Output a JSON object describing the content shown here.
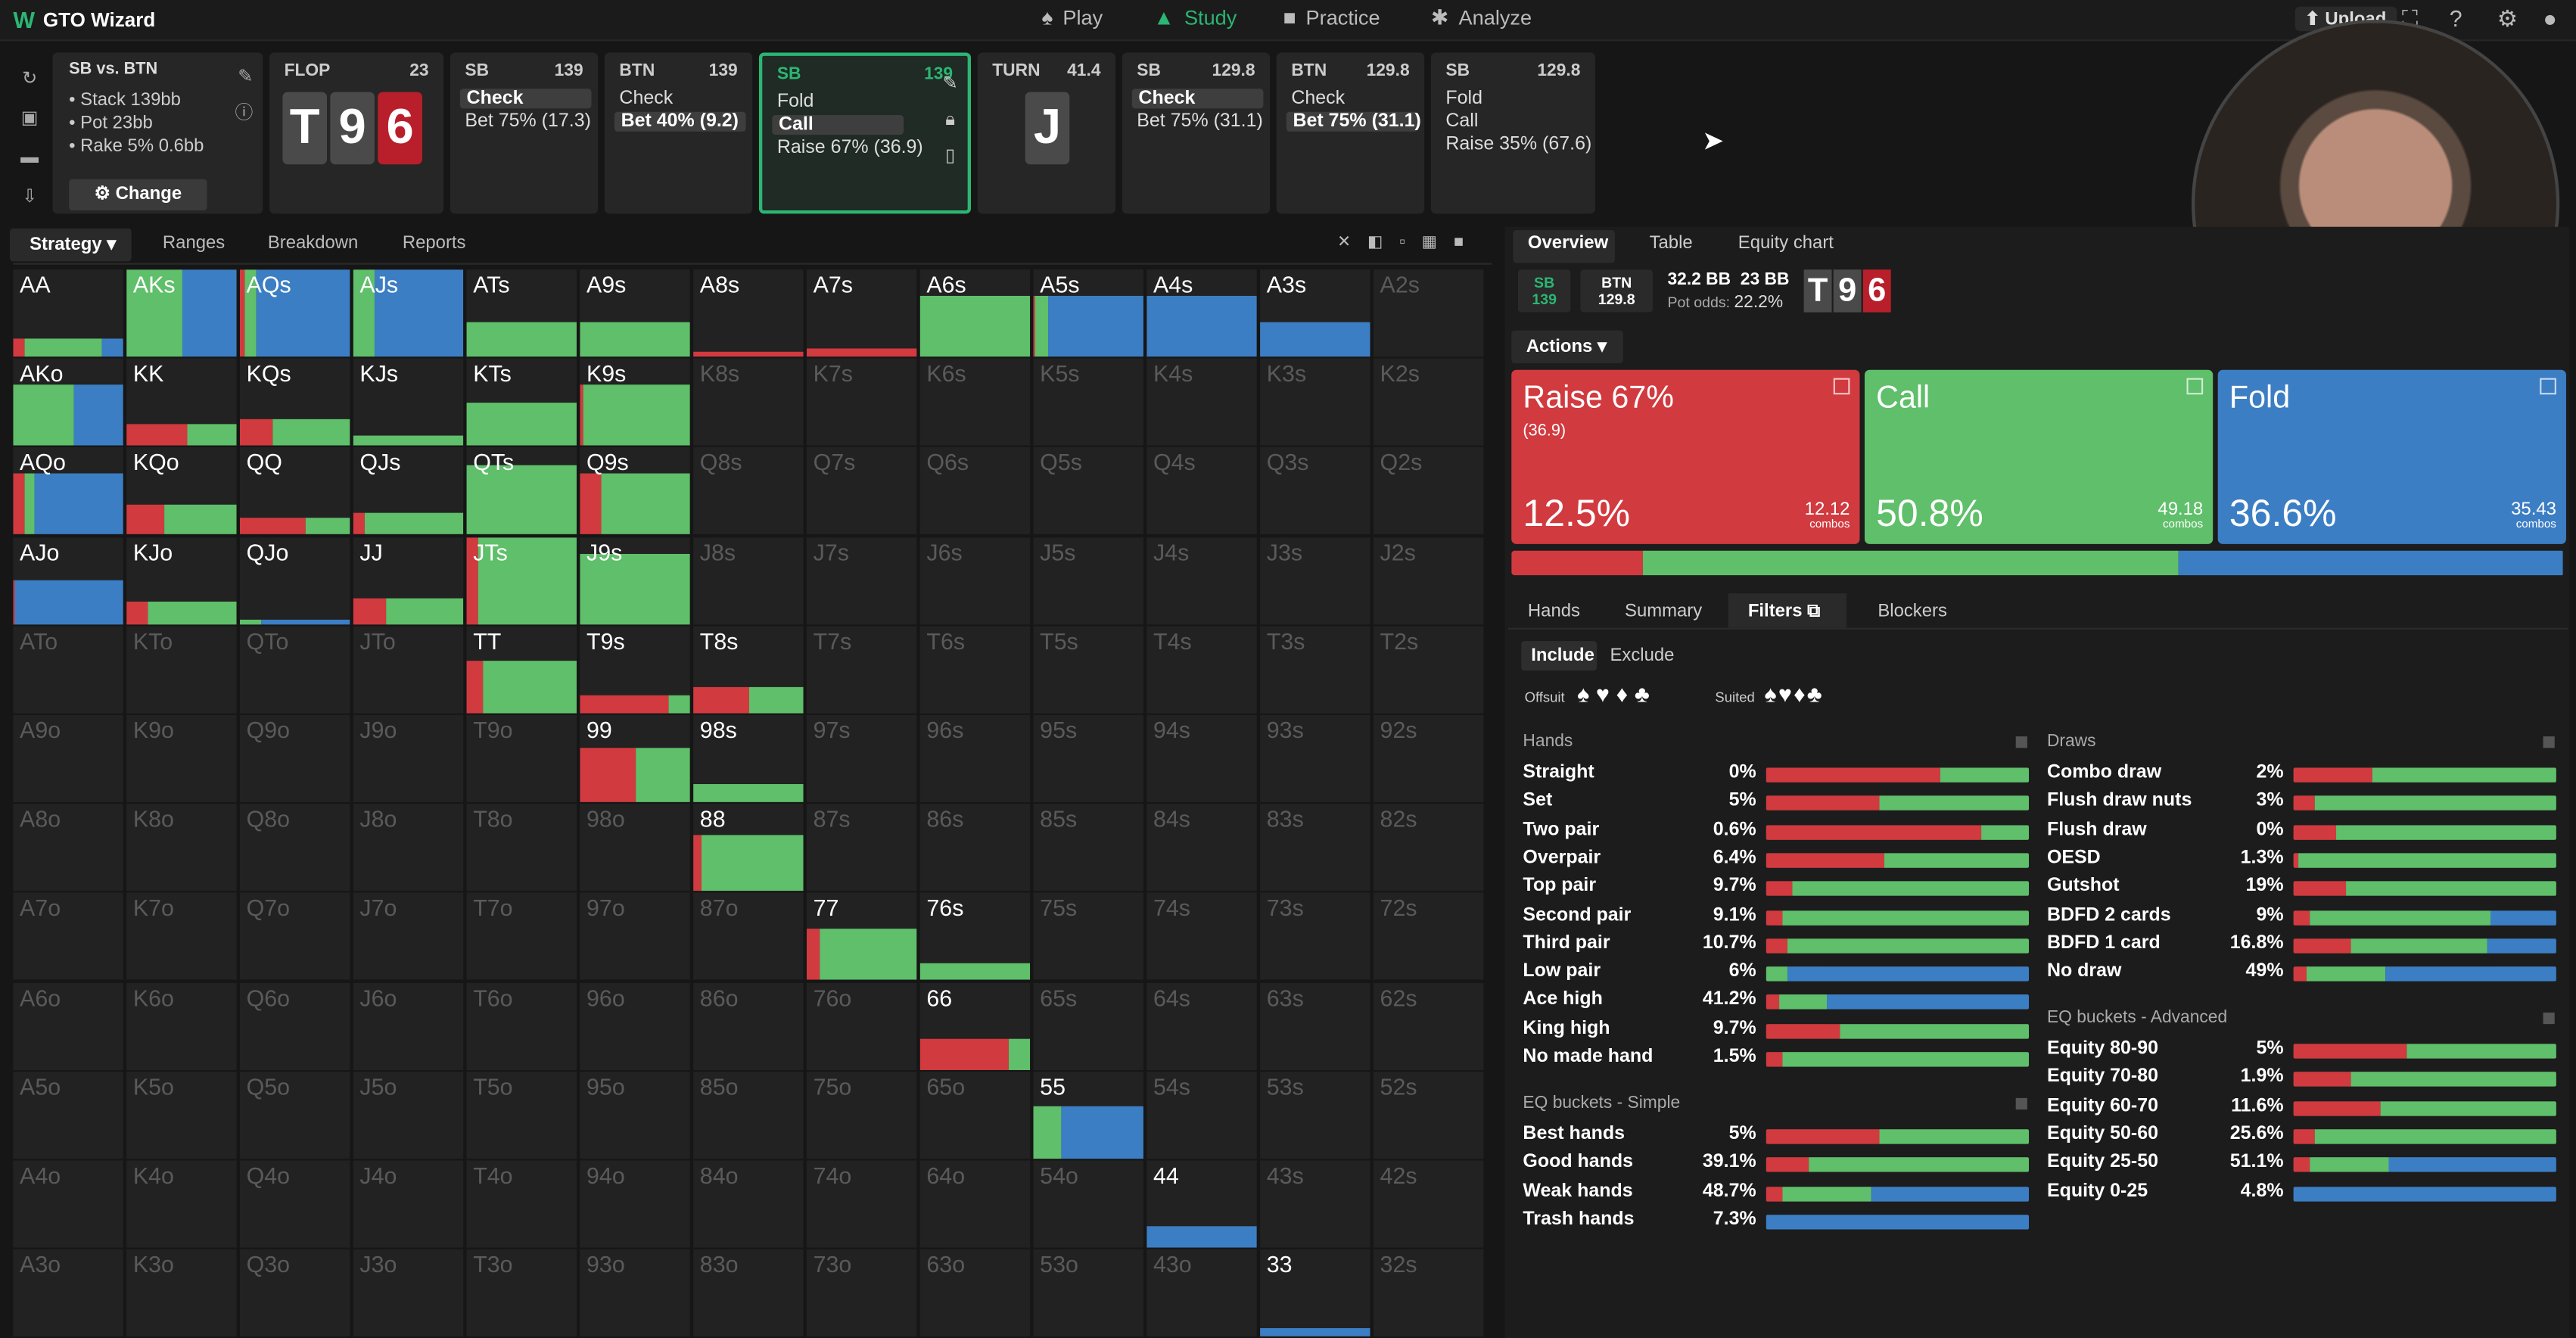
{
  "app": {
    "name": "GTO Wizard",
    "logo": "W"
  },
  "nav": [
    {
      "label": "Play",
      "icon": "spade-icon"
    },
    {
      "label": "Study",
      "icon": "cap-icon",
      "active": true
    },
    {
      "label": "Practice",
      "icon": "gamepad-icon"
    },
    {
      "label": "Analyze",
      "icon": "bulb-icon"
    }
  ],
  "upload_label": "Upload",
  "spot": {
    "title": "SB vs. BTN",
    "stack": "• Stack 139bb",
    "pot": "• Pot 23bb",
    "rake": "• Rake 5% 0.6bb",
    "change_label": "Change"
  },
  "history": [
    {
      "pos": "FLOP",
      "stack": "23",
      "board": [
        "T",
        "9",
        "6"
      ]
    },
    {
      "pos": "SB",
      "stack": "139",
      "actions": [
        "Check",
        "Bet 75% (17.3)"
      ],
      "hl": 0
    },
    {
      "pos": "BTN",
      "stack": "139",
      "actions": [
        "Check",
        "Bet 40% (9.2)"
      ],
      "hl": 1
    },
    {
      "pos": "SB",
      "stack": "139",
      "actions": [
        "Fold",
        "Call",
        "Raise 67% (36.9)"
      ],
      "hl": 1,
      "current": true
    },
    {
      "pos": "TURN",
      "stack": "41.4",
      "board": [
        "J"
      ]
    },
    {
      "pos": "SB",
      "stack": "129.8",
      "actions": [
        "Check",
        "Bet 75% (31.1)"
      ],
      "hl": 0
    },
    {
      "pos": "BTN",
      "stack": "129.8",
      "actions": [
        "Check",
        "Bet 75% (31.1)"
      ],
      "hl": 1
    },
    {
      "pos": "SB",
      "stack": "129.8",
      "actions": [
        "Fold",
        "Call",
        "Raise 35% (67.6)"
      ],
      "hl": -1
    }
  ],
  "left_tabs": [
    "Strategy",
    "Ranges",
    "Breakdown",
    "Reports"
  ],
  "right_tabs": [
    "Overview",
    "Table",
    "Equity chart"
  ],
  "info": {
    "sb": "SB",
    "sb_stack": "139",
    "btn": "BTN",
    "btn_stack": "129.8",
    "pot": "32.2 BB",
    "call": "23 BB",
    "pot_odds_label": "Pot odds:",
    "pot_odds": "22.2%",
    "board": [
      "T",
      "9",
      "6"
    ]
  },
  "actions_label": "Actions",
  "actions": [
    {
      "name": "Raise 67%",
      "sub": "(36.9)",
      "pct": "12.5%",
      "combos": "12.12",
      "combos_label": "combos",
      "color": "#d13a3f"
    },
    {
      "name": "Call",
      "sub": "",
      "pct": "50.8%",
      "combos": "49.18",
      "combos_label": "combos",
      "color": "#5fbf6a"
    },
    {
      "name": "Fold",
      "sub": "",
      "pct": "36.6%",
      "combos": "35.43",
      "combos_label": "combos",
      "color": "#3c7ec4"
    }
  ],
  "freq": {
    "raise": 12.5,
    "call": 50.8,
    "fold": 36.6
  },
  "sub_tabs": [
    "Hands",
    "Summary",
    "Filters",
    "Blockers"
  ],
  "include_label": "Include",
  "exclude_label": "Exclude",
  "offsuit_label": "Offsuit",
  "suited_label": "Suited",
  "colors": {
    "raise": "#d13a3f",
    "call": "#5fbf6a",
    "fold": "#3c7ec4"
  },
  "grid_ranks": [
    "A",
    "K",
    "Q",
    "J",
    "T",
    "9",
    "8",
    "7",
    "6",
    "5",
    "4",
    "3"
  ],
  "grid_active": {
    "AA": [
      0.2,
      0.1,
      0.7,
      0.2
    ],
    "AKs": [
      1,
      0,
      0.5,
      0.5
    ],
    "AQs": [
      1,
      0.05,
      0.1,
      0.85
    ],
    "AJs": [
      1,
      0,
      0.2,
      0.8
    ],
    "ATs": [
      0.4,
      0,
      1,
      0
    ],
    "A9s": [
      0.4,
      0,
      1,
      0
    ],
    "A8s": [
      0.05,
      1,
      0,
      0
    ],
    "A7s": [
      0.1,
      1,
      0,
      0
    ],
    "A6s": [
      0.7,
      0,
      1,
      0
    ],
    "A5s": [
      0.7,
      0.02,
      0.12,
      0.86
    ],
    "A4s": [
      0.7,
      0,
      0,
      1
    ],
    "A3s": [
      0.4,
      0,
      0,
      1
    ],
    "AKo": [
      0.7,
      0,
      0.55,
      0.45
    ],
    "KK": [
      0.25,
      0.55,
      0.45,
      0
    ],
    "KQs": [
      0.3,
      0.3,
      0.7,
      0
    ],
    "KJs": [
      0.12,
      0,
      1,
      0
    ],
    "KTs": [
      0.5,
      0,
      1,
      0
    ],
    "K9s": [
      0.7,
      0.03,
      0.97,
      0
    ],
    "AQo": [
      0.7,
      0.1,
      0.1,
      0.8
    ],
    "KQo": [
      0.35,
      0.35,
      0.65,
      0
    ],
    "QQ": [
      0.2,
      0.6,
      0.4,
      0
    ],
    "QJs": [
      0.25,
      0.1,
      0.9,
      0
    ],
    "QTs": [
      0.8,
      0,
      1,
      0
    ],
    "Q9s": [
      0.7,
      0.2,
      0.8,
      0
    ],
    "AJo": [
      0.5,
      0.02,
      0,
      0.98
    ],
    "KJo": [
      0.25,
      0.2,
      0.8,
      0
    ],
    "QJo": [
      0.05,
      0,
      0.2,
      0.8
    ],
    "JJ": [
      0.3,
      0.3,
      0.7,
      0
    ],
    "JTs": [
      1,
      0.1,
      0.9,
      0
    ],
    "J9s": [
      0.8,
      0,
      1,
      0
    ],
    "TT": [
      0.6,
      0.15,
      0.85,
      0
    ],
    "T9s": [
      0.2,
      0.8,
      0.2,
      0
    ],
    "T8s": [
      0.3,
      0.5,
      0.5,
      0
    ],
    "99": [
      0.62,
      0.5,
      0.5,
      0
    ],
    "98s": [
      0.2,
      0,
      1,
      0
    ],
    "88": [
      0.65,
      0.08,
      0.92,
      0
    ],
    "77": [
      0.6,
      0.12,
      0.88,
      0
    ],
    "76s": [
      0.2,
      0,
      1,
      0
    ],
    "66": [
      0.35,
      0.8,
      0.2,
      0
    ],
    "55": [
      0.6,
      0,
      0.25,
      0.75
    ],
    "44": [
      0.25,
      0,
      0,
      1
    ],
    "33": [
      0.1,
      0,
      0,
      1
    ]
  },
  "hands_stats": {
    "title": "Hands",
    "rows": [
      {
        "name": "Straight",
        "pct": "0%",
        "r": 0.66,
        "c": 0.34,
        "f": 0
      },
      {
        "name": "Set",
        "pct": "5%",
        "r": 0.43,
        "c": 0.57,
        "f": 0
      },
      {
        "name": "Two pair",
        "pct": "0.6%",
        "r": 0.82,
        "c": 0.18,
        "f": 0
      },
      {
        "name": "Overpair",
        "pct": "6.4%",
        "r": 0.45,
        "c": 0.55,
        "f": 0
      },
      {
        "name": "Top pair",
        "pct": "9.7%",
        "r": 0.1,
        "c": 0.9,
        "f": 0
      },
      {
        "name": "Second pair",
        "pct": "9.1%",
        "r": 0.06,
        "c": 0.94,
        "f": 0
      },
      {
        "name": "Third pair",
        "pct": "10.7%",
        "r": 0.08,
        "c": 0.92,
        "f": 0
      },
      {
        "name": "Low pair",
        "pct": "6%",
        "r": 0,
        "c": 0.08,
        "f": 0.92
      },
      {
        "name": "Ace high",
        "pct": "41.2%",
        "r": 0.05,
        "c": 0.18,
        "f": 0.77
      },
      {
        "name": "King high",
        "pct": "9.7%",
        "r": 0.28,
        "c": 0.72,
        "f": 0
      },
      {
        "name": "No made hand",
        "pct": "1.5%",
        "r": 0.06,
        "c": 0.94,
        "f": 0
      }
    ]
  },
  "eq_simple": {
    "title": "EQ buckets - Simple",
    "rows": [
      {
        "name": "Best hands",
        "pct": "5%",
        "r": 0.43,
        "c": 0.57,
        "f": 0
      },
      {
        "name": "Good hands",
        "pct": "39.1%",
        "r": 0.16,
        "c": 0.84,
        "f": 0
      },
      {
        "name": "Weak hands",
        "pct": "48.7%",
        "r": 0.06,
        "c": 0.34,
        "f": 0.6
      },
      {
        "name": "Trash hands",
        "pct": "7.3%",
        "r": 0,
        "c": 0,
        "f": 1
      }
    ]
  },
  "draws": {
    "title": "Draws",
    "rows": [
      {
        "name": "Combo draw",
        "pct": "2%",
        "r": 0.3,
        "c": 0.7,
        "f": 0
      },
      {
        "name": "Flush draw nuts",
        "pct": "3%",
        "r": 0.08,
        "c": 0.92,
        "f": 0
      },
      {
        "name": "Flush draw",
        "pct": "0%",
        "r": 0.16,
        "c": 0.84,
        "f": 0
      },
      {
        "name": "OESD",
        "pct": "1.3%",
        "r": 0.02,
        "c": 0.98,
        "f": 0
      },
      {
        "name": "Gutshot",
        "pct": "19%",
        "r": 0.2,
        "c": 0.8,
        "f": 0
      },
      {
        "name": "BDFD 2 cards",
        "pct": "9%",
        "r": 0.06,
        "c": 0.69,
        "f": 0.25
      },
      {
        "name": "BDFD 1 card",
        "pct": "16.8%",
        "r": 0.22,
        "c": 0.52,
        "f": 0.26
      },
      {
        "name": "No draw",
        "pct": "49%",
        "r": 0.05,
        "c": 0.3,
        "f": 0.65
      }
    ]
  },
  "eq_adv": {
    "title": "EQ buckets - Advanced",
    "rows": [
      {
        "name": "Equity 80-90",
        "pct": "5%",
        "r": 0.43,
        "c": 0.57,
        "f": 0
      },
      {
        "name": "Equity 70-80",
        "pct": "1.9%",
        "r": 0.22,
        "c": 0.78,
        "f": 0
      },
      {
        "name": "Equity 60-70",
        "pct": "11.6%",
        "r": 0.33,
        "c": 0.67,
        "f": 0
      },
      {
        "name": "Equity 50-60",
        "pct": "25.6%",
        "r": 0.08,
        "c": 0.92,
        "f": 0
      },
      {
        "name": "Equity 25-50",
        "pct": "51.1%",
        "r": 0.06,
        "c": 0.3,
        "f": 0.64
      },
      {
        "name": "Equity 0-25",
        "pct": "4.8%",
        "r": 0,
        "c": 0,
        "f": 1
      }
    ]
  }
}
